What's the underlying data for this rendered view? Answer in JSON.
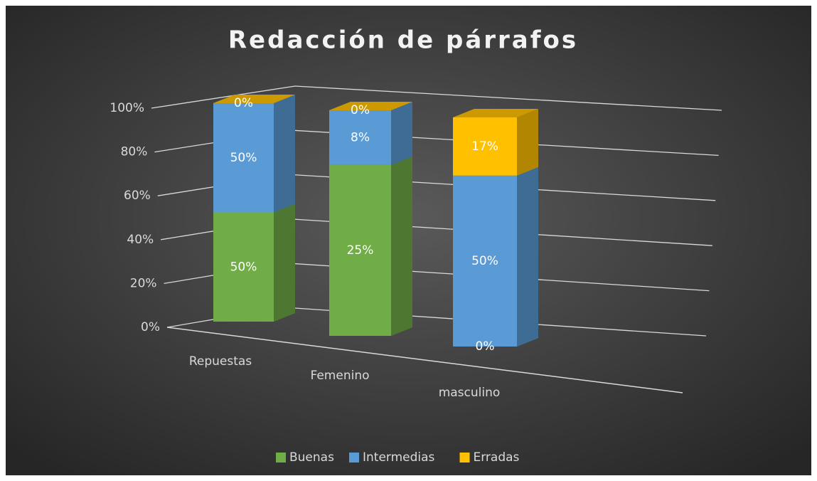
{
  "chart_data": {
    "type": "bar",
    "stacking": "percent",
    "title": "Redacción de párrafos",
    "categories": [
      "Repuestas",
      "Femenino",
      "masculino"
    ],
    "series": [
      {
        "name": "Buenas",
        "color": "#70ad47",
        "values": [
          50,
          25,
          0
        ],
        "value_labels": [
          "50%",
          "25%",
          "0%"
        ]
      },
      {
        "name": "Intermedias",
        "color": "#5b9bd5",
        "values": [
          50,
          8,
          50
        ],
        "value_labels": [
          "50%",
          "8%",
          "50%"
        ]
      },
      {
        "name": "Erradas",
        "color": "#ffc000",
        "values": [
          0,
          0,
          17
        ],
        "value_labels": [
          "0%",
          "0%",
          "17%"
        ]
      }
    ],
    "ylim": [
      0,
      100
    ],
    "yticks": [
      {
        "value": 0,
        "label": "0%"
      },
      {
        "value": 20,
        "label": "20%"
      },
      {
        "value": 40,
        "label": "40%"
      },
      {
        "value": 60,
        "label": "60%"
      },
      {
        "value": 80,
        "label": "80%"
      },
      {
        "value": 100,
        "label": "100%"
      }
    ],
    "grid": true,
    "legend": "bottom"
  }
}
